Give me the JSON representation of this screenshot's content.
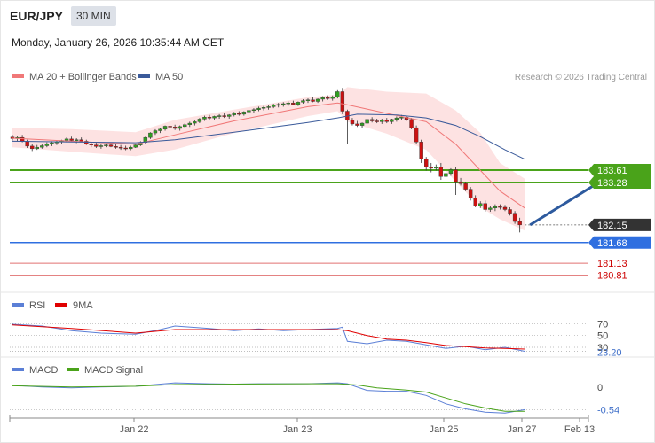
{
  "header": {
    "symbol": "EUR/JPY",
    "timeframe": "30 MIN",
    "datetime": "Monday, January 26, 2026 10:35:44 AM CET",
    "copyright": "Research © 2026 Trading Central"
  },
  "colors": {
    "up": "#2fa020",
    "down": "#cc1111",
    "ma20": "#f07878",
    "ma50": "#3a5a9a",
    "band_fill": "#fde2e2",
    "resistance": "#4aa31a",
    "support": "#2f6fe0",
    "target_red": "#e07070",
    "arrow": "#2d5a9e"
  },
  "chart_data": [
    {
      "name": "price",
      "type": "candlestick",
      "x_ticks": [
        "Jan 22",
        "Jan 23",
        "Jan 25",
        "Jan 27",
        "Feb 13"
      ],
      "legend": [
        "MA 20 + Bollinger Bands",
        "MA 50"
      ],
      "ylim": [
        180.4,
        185.9
      ],
      "ohlc": [
        [
          184.49,
          184.55,
          184.4,
          184.45
        ],
        [
          184.45,
          184.52,
          184.38,
          184.48
        ],
        [
          184.48,
          184.55,
          184.35,
          184.38
        ],
        [
          184.38,
          184.42,
          184.2,
          184.25
        ],
        [
          184.25,
          184.3,
          184.12,
          184.18
        ],
        [
          184.18,
          184.28,
          184.15,
          184.22
        ],
        [
          184.22,
          184.3,
          184.18,
          184.26
        ],
        [
          184.26,
          184.35,
          184.22,
          184.3
        ],
        [
          184.3,
          184.38,
          184.25,
          184.34
        ],
        [
          184.34,
          184.4,
          184.28,
          184.36
        ],
        [
          184.36,
          184.42,
          184.3,
          184.4
        ],
        [
          184.4,
          184.48,
          184.35,
          184.44
        ],
        [
          184.44,
          184.5,
          184.36,
          184.4
        ],
        [
          184.4,
          184.46,
          184.33,
          184.42
        ],
        [
          184.42,
          184.48,
          184.36,
          184.38
        ],
        [
          184.38,
          184.42,
          184.28,
          184.3
        ],
        [
          184.3,
          184.36,
          184.22,
          184.28
        ],
        [
          184.28,
          184.34,
          184.2,
          184.24
        ],
        [
          184.24,
          184.3,
          184.18,
          184.26
        ],
        [
          184.26,
          184.32,
          184.22,
          184.28
        ],
        [
          184.28,
          184.34,
          184.22,
          184.24
        ],
        [
          184.24,
          184.3,
          184.18,
          184.22
        ],
        [
          184.22,
          184.28,
          184.15,
          184.2
        ],
        [
          184.2,
          184.26,
          184.14,
          184.18
        ],
        [
          184.18,
          184.26,
          184.14,
          184.22
        ],
        [
          184.22,
          184.3,
          184.2,
          184.28
        ],
        [
          184.28,
          184.38,
          184.25,
          184.35
        ],
        [
          184.35,
          184.5,
          184.32,
          184.48
        ],
        [
          184.48,
          184.62,
          184.44,
          184.6
        ],
        [
          184.6,
          184.7,
          184.55,
          184.66
        ],
        [
          184.66,
          184.74,
          184.6,
          184.7
        ],
        [
          184.7,
          184.8,
          184.66,
          184.78
        ],
        [
          184.78,
          184.84,
          184.7,
          184.76
        ],
        [
          184.76,
          184.82,
          184.68,
          184.72
        ],
        [
          184.72,
          184.8,
          184.66,
          184.77
        ],
        [
          184.77,
          184.86,
          184.72,
          184.82
        ],
        [
          184.82,
          184.9,
          184.76,
          184.86
        ],
        [
          184.86,
          184.94,
          184.8,
          184.9
        ],
        [
          184.9,
          185.0,
          184.86,
          184.97
        ],
        [
          184.97,
          185.06,
          184.92,
          185.02
        ],
        [
          185.02,
          185.08,
          184.96,
          185.0
        ],
        [
          185.0,
          185.06,
          184.94,
          185.04
        ],
        [
          185.04,
          185.1,
          184.98,
          185.06
        ],
        [
          185.06,
          185.12,
          185.0,
          185.04
        ],
        [
          185.04,
          185.1,
          184.98,
          185.08
        ],
        [
          185.08,
          185.16,
          185.04,
          185.12
        ],
        [
          185.12,
          185.18,
          185.06,
          185.1
        ],
        [
          185.1,
          185.18,
          185.06,
          185.16
        ],
        [
          185.16,
          185.24,
          185.1,
          185.2
        ],
        [
          185.2,
          185.26,
          185.14,
          185.22
        ],
        [
          185.22,
          185.3,
          185.18,
          185.26
        ],
        [
          185.26,
          185.32,
          185.2,
          185.28
        ],
        [
          185.28,
          185.34,
          185.22,
          185.3
        ],
        [
          185.3,
          185.38,
          185.26,
          185.34
        ],
        [
          185.34,
          185.4,
          185.28,
          185.36
        ],
        [
          185.36,
          185.42,
          185.3,
          185.38
        ],
        [
          185.38,
          185.44,
          185.32,
          185.4
        ],
        [
          185.4,
          185.46,
          185.34,
          185.36
        ],
        [
          185.36,
          185.44,
          185.32,
          185.42
        ],
        [
          185.42,
          185.5,
          185.38,
          185.46
        ],
        [
          185.46,
          185.52,
          185.4,
          185.48
        ],
        [
          185.48,
          185.56,
          185.42,
          185.44
        ],
        [
          185.44,
          185.52,
          185.4,
          185.5
        ],
        [
          185.5,
          185.58,
          185.44,
          185.54
        ],
        [
          185.54,
          185.6,
          185.48,
          185.52
        ],
        [
          185.52,
          185.6,
          185.46,
          185.56
        ],
        [
          185.56,
          185.74,
          185.52,
          185.7
        ],
        [
          185.7,
          185.8,
          185.1,
          185.18
        ],
        [
          185.18,
          185.22,
          184.3,
          184.95
        ],
        [
          184.95,
          185.0,
          184.8,
          184.84
        ],
        [
          184.84,
          184.92,
          184.76,
          184.8
        ],
        [
          184.8,
          184.88,
          184.74,
          184.86
        ],
        [
          184.86,
          184.98,
          184.82,
          184.96
        ],
        [
          184.96,
          185.02,
          184.88,
          184.92
        ],
        [
          184.92,
          184.98,
          184.86,
          184.9
        ],
        [
          184.9,
          184.98,
          184.84,
          184.94
        ],
        [
          184.94,
          185.0,
          184.86,
          184.9
        ],
        [
          184.9,
          184.98,
          184.84,
          184.96
        ],
        [
          184.96,
          185.04,
          184.9,
          185.0
        ],
        [
          185.0,
          185.08,
          184.94,
          185.02
        ],
        [
          185.02,
          185.06,
          184.92,
          184.96
        ],
        [
          184.96,
          185.0,
          184.7,
          184.74
        ],
        [
          184.74,
          184.8,
          184.3,
          184.36
        ],
        [
          184.36,
          184.42,
          183.8,
          183.9
        ],
        [
          183.9,
          183.96,
          183.6,
          183.7
        ],
        [
          183.7,
          183.8,
          183.55,
          183.66
        ],
        [
          183.66,
          183.76,
          183.6,
          183.7
        ],
        [
          183.7,
          183.8,
          183.35,
          183.44
        ],
        [
          183.44,
          183.58,
          183.4,
          183.52
        ],
        [
          183.52,
          183.66,
          183.46,
          183.62
        ],
        [
          183.62,
          183.7,
          182.95,
          183.3
        ],
        [
          183.3,
          183.4,
          183.2,
          183.25
        ],
        [
          183.25,
          183.3,
          183.05,
          183.1
        ],
        [
          183.1,
          183.16,
          182.8,
          182.86
        ],
        [
          182.86,
          182.94,
          182.62,
          182.66
        ],
        [
          182.66,
          182.78,
          182.6,
          182.72
        ],
        [
          182.72,
          182.8,
          182.5,
          182.56
        ],
        [
          182.56,
          182.66,
          182.5,
          182.6
        ],
        [
          182.6,
          182.7,
          182.52,
          182.64
        ],
        [
          182.64,
          182.7,
          182.56,
          182.62
        ],
        [
          182.62,
          182.68,
          182.52,
          182.56
        ],
        [
          182.56,
          182.62,
          182.4,
          182.46
        ],
        [
          182.46,
          182.52,
          182.18,
          182.24
        ],
        [
          182.24,
          182.34,
          181.95,
          182.15
        ]
      ],
      "bollinger": {
        "upper": [
          [
            0,
            184.74
          ],
          [
            12,
            184.7
          ],
          [
            25,
            184.62
          ],
          [
            33,
            184.95
          ],
          [
            45,
            185.22
          ],
          [
            60,
            185.55
          ],
          [
            66,
            185.62
          ],
          [
            68,
            185.82
          ],
          [
            76,
            185.7
          ],
          [
            84,
            185.65
          ],
          [
            90,
            185.2
          ],
          [
            95,
            184.6
          ],
          [
            99,
            183.8
          ],
          [
            104,
            183.38
          ]
        ],
        "middle": [
          [
            0,
            184.46
          ],
          [
            12,
            184.38
          ],
          [
            25,
            184.3
          ],
          [
            33,
            184.55
          ],
          [
            45,
            184.92
          ],
          [
            60,
            185.3
          ],
          [
            66,
            185.4
          ],
          [
            68,
            185.35
          ],
          [
            76,
            185.12
          ],
          [
            84,
            184.9
          ],
          [
            90,
            184.3
          ],
          [
            95,
            183.6
          ],
          [
            99,
            183.05
          ],
          [
            104,
            182.6
          ]
        ],
        "lower": [
          [
            0,
            184.22
          ],
          [
            12,
            184.1
          ],
          [
            25,
            183.98
          ],
          [
            33,
            184.16
          ],
          [
            45,
            184.6
          ],
          [
            60,
            185.05
          ],
          [
            66,
            185.18
          ],
          [
            68,
            184.9
          ],
          [
            76,
            184.58
          ],
          [
            84,
            184.15
          ],
          [
            90,
            183.3
          ],
          [
            95,
            182.62
          ],
          [
            99,
            182.3
          ],
          [
            104,
            182.0
          ]
        ]
      },
      "ma50": [
        [
          0,
          184.38
        ],
        [
          12,
          184.36
        ],
        [
          25,
          184.34
        ],
        [
          33,
          184.42
        ],
        [
          45,
          184.62
        ],
        [
          60,
          184.88
        ],
        [
          66,
          185.0
        ],
        [
          70,
          185.1
        ],
        [
          78,
          185.08
        ],
        [
          84,
          185.0
        ],
        [
          90,
          184.8
        ],
        [
          95,
          184.5
        ],
        [
          100,
          184.15
        ],
        [
          104,
          183.9
        ]
      ],
      "levels": {
        "resistance_1": 183.61,
        "resistance_2": 183.28,
        "last": 182.15,
        "pivot": 181.68,
        "support_1": 181.13,
        "support_2": 180.81
      },
      "level_labels": [
        "183.61",
        "183.28",
        "182.15",
        "181.68",
        "181.13",
        "180.81"
      ],
      "target_arrow": {
        "from": [
          104,
          182.15
        ],
        "to": [
          123,
          183.61
        ]
      }
    },
    {
      "name": "rsi",
      "type": "line",
      "legend": [
        "RSI",
        "9MA"
      ],
      "ylim": [
        15,
        90
      ],
      "guides": [
        70,
        50,
        30
      ],
      "guide_labels": [
        "70",
        "50",
        "30"
      ],
      "current": 23.2,
      "current_label": "23.20",
      "rsi": [
        [
          0,
          69
        ],
        [
          6,
          66
        ],
        [
          12,
          58
        ],
        [
          18,
          54
        ],
        [
          25,
          52
        ],
        [
          30,
          60
        ],
        [
          33,
          66
        ],
        [
          40,
          62
        ],
        [
          45,
          58
        ],
        [
          50,
          61
        ],
        [
          55,
          58
        ],
        [
          60,
          60
        ],
        [
          66,
          62
        ],
        [
          67,
          64
        ],
        [
          68,
          40
        ],
        [
          72,
          36
        ],
        [
          76,
          42
        ],
        [
          80,
          40
        ],
        [
          84,
          34
        ],
        [
          88,
          28
        ],
        [
          92,
          32
        ],
        [
          96,
          26
        ],
        [
          100,
          30
        ],
        [
          104,
          23.2
        ]
      ],
      "ma9": [
        [
          0,
          68
        ],
        [
          12,
          62
        ],
        [
          25,
          54
        ],
        [
          33,
          60
        ],
        [
          45,
          60
        ],
        [
          55,
          60
        ],
        [
          66,
          60
        ],
        [
          68,
          58
        ],
        [
          72,
          50
        ],
        [
          76,
          44
        ],
        [
          80,
          42
        ],
        [
          84,
          38
        ],
        [
          88,
          33
        ],
        [
          92,
          31
        ],
        [
          96,
          29
        ],
        [
          100,
          28
        ],
        [
          104,
          27
        ]
      ]
    },
    {
      "name": "macd",
      "type": "line",
      "legend": [
        "MACD",
        "MACD Signal"
      ],
      "ylim": [
        -0.7,
        0.25
      ],
      "zero_label": "0",
      "current": -0.54,
      "current_label": "-0.54",
      "macd": [
        [
          0,
          0.04
        ],
        [
          6,
          0.0
        ],
        [
          12,
          -0.02
        ],
        [
          18,
          0.0
        ],
        [
          25,
          0.02
        ],
        [
          33,
          0.1
        ],
        [
          40,
          0.08
        ],
        [
          45,
          0.07
        ],
        [
          50,
          0.08
        ],
        [
          60,
          0.08
        ],
        [
          66,
          0.1
        ],
        [
          68,
          0.08
        ],
        [
          72,
          -0.08
        ],
        [
          76,
          -0.1
        ],
        [
          80,
          -0.1
        ],
        [
          84,
          -0.2
        ],
        [
          88,
          -0.4
        ],
        [
          92,
          -0.52
        ],
        [
          96,
          -0.6
        ],
        [
          100,
          -0.62
        ],
        [
          104,
          -0.54
        ]
      ],
      "signal": [
        [
          0,
          0.03
        ],
        [
          12,
          0.0
        ],
        [
          25,
          0.02
        ],
        [
          33,
          0.06
        ],
        [
          45,
          0.07
        ],
        [
          60,
          0.08
        ],
        [
          66,
          0.08
        ],
        [
          70,
          0.05
        ],
        [
          74,
          -0.02
        ],
        [
          80,
          -0.07
        ],
        [
          84,
          -0.12
        ],
        [
          88,
          -0.26
        ],
        [
          92,
          -0.4
        ],
        [
          96,
          -0.5
        ],
        [
          100,
          -0.58
        ],
        [
          104,
          -0.58
        ]
      ]
    }
  ]
}
